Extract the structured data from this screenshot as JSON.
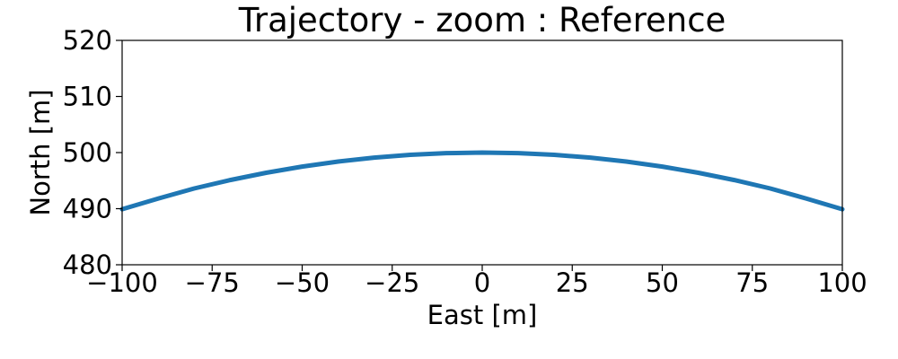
{
  "chart_data": {
    "type": "line",
    "title": "Trajectory - zoom : Reference",
    "xlabel": "East [m]",
    "ylabel": "North [m]",
    "xlim": [
      -100,
      100
    ],
    "ylim": [
      480,
      520
    ],
    "xticks": [
      -100,
      -75,
      -50,
      -25,
      0,
      25,
      50,
      75,
      100
    ],
    "xtick_labels": [
      "−100",
      "−75",
      "−50",
      "−25",
      "0",
      "25",
      "50",
      "75",
      "100"
    ],
    "yticks": [
      480,
      490,
      500,
      510,
      520
    ],
    "ytick_labels": [
      "480",
      "490",
      "500",
      "510",
      "520"
    ],
    "grid": false,
    "series": [
      {
        "color": "#1f77b4",
        "x": [
          -100,
          -90,
          -80,
          -70,
          -60,
          -50,
          -40,
          -30,
          -20,
          -10,
          0,
          10,
          20,
          30,
          40,
          50,
          60,
          70,
          80,
          90,
          100
        ],
        "y": [
          489.9,
          491.8,
          493.6,
          495.1,
          496.4,
          497.5,
          498.4,
          499.1,
          499.6,
          499.9,
          500.0,
          499.9,
          499.6,
          499.1,
          498.4,
          497.5,
          496.4,
          495.1,
          493.6,
          491.8,
          489.9
        ]
      }
    ]
  }
}
